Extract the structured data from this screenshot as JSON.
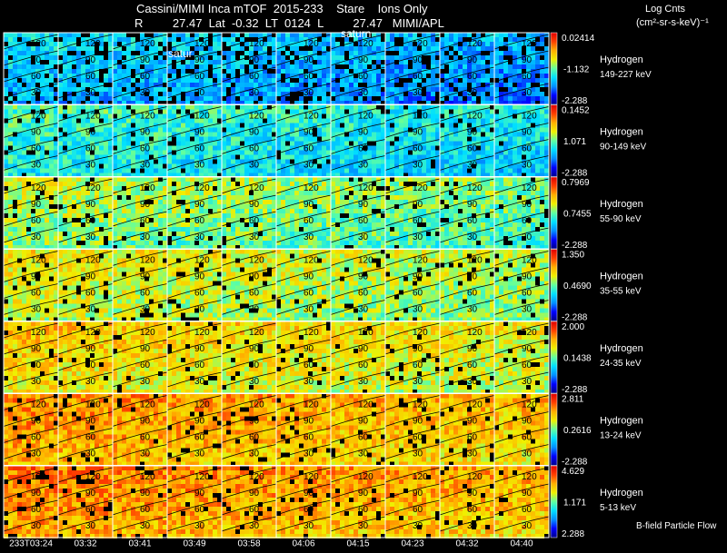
{
  "header": {
    "title_line1": "Cassini/MIMI Inca mTOF  2015-233    Stare    Ions Only",
    "title_line2": "R         27.47  Lat  -0.32  LT  0124  L         27.47   MIMI/APL",
    "saturn_label_a": "satur",
    "saturn_label_b": "saturn",
    "units_line1": "Log Cnts",
    "units_line2": "(cm²-sr-s-keV)⁻¹"
  },
  "footer": {
    "flow_label": "B-field Particle Flow"
  },
  "chart_data": {
    "type": "heatmap",
    "times": [
      "233T03:24",
      "03:32",
      "03:41",
      "03:49",
      "03:58",
      "04:06",
      "04:15",
      "04:23",
      "04:32",
      "04:40"
    ],
    "contour_labels": [
      "120",
      "90",
      "60",
      "30"
    ],
    "colors": {
      "scale": [
        "#00008c",
        "#0000ff",
        "#0090ff",
        "#00e0ff",
        "#60ffa0",
        "#f0f000",
        "#ffb000",
        "#ff4000",
        "#e00000"
      ]
    },
    "rows": [
      {
        "species": "Hydrogen",
        "energy": "149-227 keV",
        "max": "0.02414",
        "mid": "-1.132",
        "min": "-2.288",
        "level": 0.3
      },
      {
        "species": "Hydrogen",
        "energy": "90-149 keV",
        "max": "0.1452",
        "mid": "1.071",
        "min": "-2.288",
        "level": 0.4
      },
      {
        "species": "Hydrogen",
        "energy": "55-90 keV",
        "max": "0.7969",
        "mid": "0.7455",
        "min": "-2.288",
        "level": 0.52
      },
      {
        "species": "Hydrogen",
        "energy": "35-55 keV",
        "max": "1.350",
        "mid": "0.4690",
        "min": "-2.288",
        "level": 0.58
      },
      {
        "species": "Hydrogen",
        "energy": "24-35 keV",
        "max": "2.000",
        "mid": "0.1438",
        "min": "-2.288",
        "level": 0.64
      },
      {
        "species": "Hydrogen",
        "energy": "13-24 keV",
        "max": "2.811",
        "mid": "0.2616",
        "min": "-2.288",
        "level": 0.72
      },
      {
        "species": "Hydrogen",
        "energy": "5-13 keV",
        "max": "4.629",
        "mid": "1.171",
        "min": "2.288",
        "level": 0.74
      }
    ]
  }
}
